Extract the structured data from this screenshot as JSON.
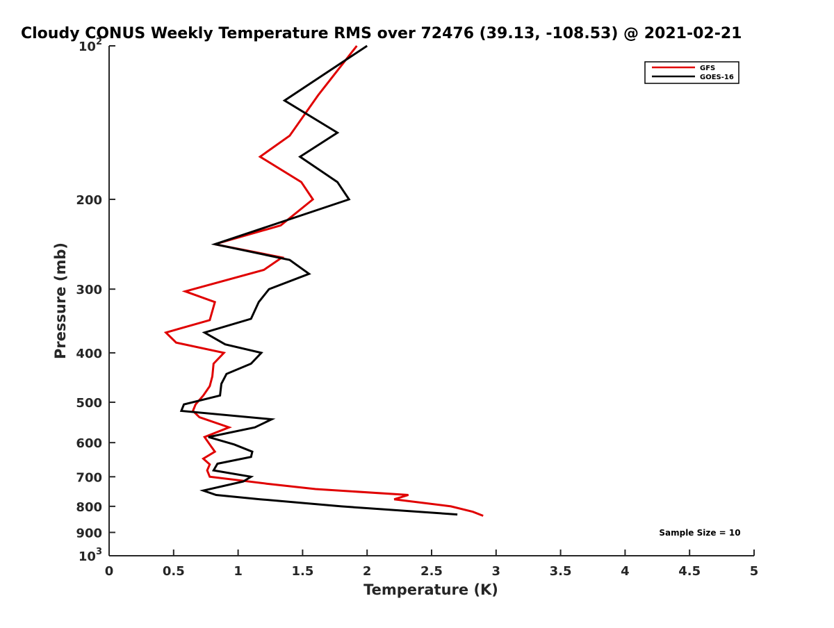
{
  "chart_data": {
    "type": "line",
    "title": "Cloudy CONUS Weekly Temperature RMS over 72476 (39.13, -108.53) @ 2021-02-21",
    "xlabel": "Temperature (K)",
    "ylabel": "Pressure (mb)",
    "xlim": [
      0,
      5
    ],
    "ylim": [
      1000,
      100
    ],
    "yscale": "log",
    "y_reversed": true,
    "grid": false,
    "legend_position": "top-right",
    "x_ticks": [
      "0",
      "0.5",
      "1",
      "1.5",
      "2",
      "2.5",
      "3",
      "3.5",
      "4",
      "4.5",
      "5"
    ],
    "y_ticks": [
      {
        "value": 100,
        "base": "10",
        "exp": "2"
      },
      {
        "value": 200,
        "label": "200"
      },
      {
        "value": 300,
        "label": "300"
      },
      {
        "value": 400,
        "label": "400"
      },
      {
        "value": 500,
        "label": "500"
      },
      {
        "value": 600,
        "label": "600"
      },
      {
        "value": 700,
        "label": "700"
      },
      {
        "value": 800,
        "label": "800"
      },
      {
        "value": 900,
        "label": "900"
      },
      {
        "value": 1000,
        "base": "10",
        "exp": "3"
      }
    ],
    "series": [
      {
        "name": "GFS",
        "color": "#e00000",
        "points": [
          {
            "x": 1.92,
            "y": 100
          },
          {
            "x": 1.62,
            "y": 125
          },
          {
            "x": 1.4,
            "y": 150
          },
          {
            "x": 1.17,
            "y": 165
          },
          {
            "x": 1.49,
            "y": 185
          },
          {
            "x": 1.58,
            "y": 200
          },
          {
            "x": 1.33,
            "y": 225
          },
          {
            "x": 0.82,
            "y": 245
          },
          {
            "x": 1.34,
            "y": 260
          },
          {
            "x": 1.2,
            "y": 275
          },
          {
            "x": 0.59,
            "y": 303
          },
          {
            "x": 0.82,
            "y": 318
          },
          {
            "x": 0.78,
            "y": 345
          },
          {
            "x": 0.44,
            "y": 365
          },
          {
            "x": 0.52,
            "y": 382
          },
          {
            "x": 0.89,
            "y": 400
          },
          {
            "x": 0.81,
            "y": 420
          },
          {
            "x": 0.8,
            "y": 445
          },
          {
            "x": 0.78,
            "y": 465
          },
          {
            "x": 0.73,
            "y": 485
          },
          {
            "x": 0.67,
            "y": 505
          },
          {
            "x": 0.65,
            "y": 520
          },
          {
            "x": 0.7,
            "y": 535
          },
          {
            "x": 0.93,
            "y": 560
          },
          {
            "x": 0.74,
            "y": 585
          },
          {
            "x": 0.78,
            "y": 605
          },
          {
            "x": 0.82,
            "y": 625
          },
          {
            "x": 0.73,
            "y": 645
          },
          {
            "x": 0.78,
            "y": 662
          },
          {
            "x": 0.76,
            "y": 680
          },
          {
            "x": 0.78,
            "y": 700
          },
          {
            "x": 1.22,
            "y": 722
          },
          {
            "x": 1.6,
            "y": 740
          },
          {
            "x": 2.32,
            "y": 760
          },
          {
            "x": 2.21,
            "y": 775
          },
          {
            "x": 2.65,
            "y": 800
          },
          {
            "x": 2.82,
            "y": 820
          },
          {
            "x": 2.9,
            "y": 835
          }
        ]
      },
      {
        "name": "GOES-16",
        "color": "#000000",
        "points": [
          {
            "x": 2.0,
            "y": 100
          },
          {
            "x": 1.36,
            "y": 128
          },
          {
            "x": 1.77,
            "y": 148
          },
          {
            "x": 1.48,
            "y": 165
          },
          {
            "x": 1.77,
            "y": 185
          },
          {
            "x": 1.86,
            "y": 200
          },
          {
            "x": 0.82,
            "y": 245
          },
          {
            "x": 1.4,
            "y": 263
          },
          {
            "x": 1.55,
            "y": 280
          },
          {
            "x": 1.24,
            "y": 300
          },
          {
            "x": 1.16,
            "y": 318
          },
          {
            "x": 1.1,
            "y": 343
          },
          {
            "x": 0.74,
            "y": 365
          },
          {
            "x": 0.9,
            "y": 385
          },
          {
            "x": 1.18,
            "y": 400
          },
          {
            "x": 1.1,
            "y": 420
          },
          {
            "x": 0.91,
            "y": 440
          },
          {
            "x": 0.87,
            "y": 460
          },
          {
            "x": 0.86,
            "y": 485
          },
          {
            "x": 0.58,
            "y": 505
          },
          {
            "x": 0.56,
            "y": 520
          },
          {
            "x": 1.26,
            "y": 540
          },
          {
            "x": 1.13,
            "y": 560
          },
          {
            "x": 0.77,
            "y": 585
          },
          {
            "x": 0.97,
            "y": 605
          },
          {
            "x": 1.11,
            "y": 625
          },
          {
            "x": 1.1,
            "y": 640
          },
          {
            "x": 0.84,
            "y": 660
          },
          {
            "x": 0.81,
            "y": 680
          },
          {
            "x": 1.1,
            "y": 700
          },
          {
            "x": 1.04,
            "y": 715
          },
          {
            "x": 0.73,
            "y": 745
          },
          {
            "x": 0.83,
            "y": 760
          },
          {
            "x": 1.17,
            "y": 775
          },
          {
            "x": 1.8,
            "y": 800
          },
          {
            "x": 2.7,
            "y": 830
          }
        ]
      }
    ],
    "annotations": [
      "Sample Size = 10"
    ]
  }
}
